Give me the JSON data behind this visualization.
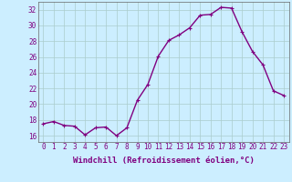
{
  "x": [
    0,
    1,
    2,
    3,
    4,
    5,
    6,
    7,
    8,
    9,
    10,
    11,
    12,
    13,
    14,
    15,
    16,
    17,
    18,
    19,
    20,
    21,
    22,
    23
  ],
  "y": [
    17.5,
    17.8,
    17.3,
    17.2,
    16.1,
    17.0,
    17.1,
    16.0,
    17.0,
    20.5,
    22.5,
    26.1,
    28.1,
    28.8,
    29.7,
    31.3,
    31.4,
    32.3,
    32.2,
    29.2,
    26.7,
    25.0,
    21.7,
    21.1
  ],
  "xlim": [
    -0.5,
    23.5
  ],
  "ylim": [
    15.2,
    33.0
  ],
  "yticks": [
    16,
    18,
    20,
    22,
    24,
    26,
    28,
    30,
    32
  ],
  "xticks": [
    0,
    1,
    2,
    3,
    4,
    5,
    6,
    7,
    8,
    9,
    10,
    11,
    12,
    13,
    14,
    15,
    16,
    17,
    18,
    19,
    20,
    21,
    22,
    23
  ],
  "xlabel": "Windchill (Refroidissement éolien,°C)",
  "line_color": "#800080",
  "marker": "+",
  "bg_color": "#cceeff",
  "grid_color": "#aacccc",
  "font_color": "#800080",
  "font_family": "monospace",
  "tick_fontsize": 5.5,
  "xlabel_fontsize": 6.5
}
